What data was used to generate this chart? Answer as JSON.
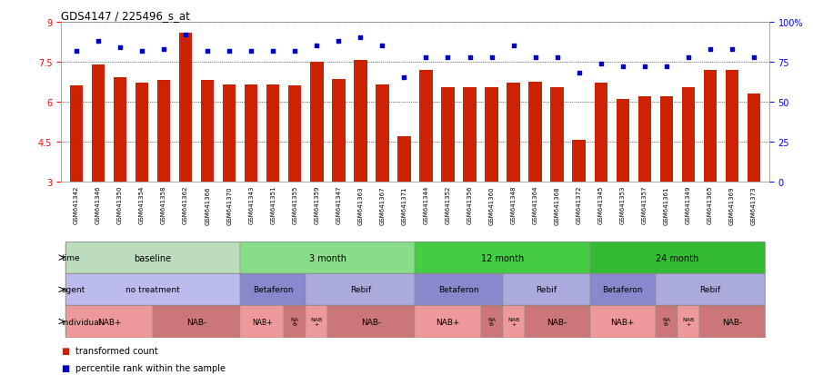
{
  "title": "GDS4147 / 225496_s_at",
  "samples": [
    "GSM641342",
    "GSM641346",
    "GSM641350",
    "GSM641354",
    "GSM641358",
    "GSM641362",
    "GSM641366",
    "GSM641370",
    "GSM641343",
    "GSM641351",
    "GSM641355",
    "GSM641359",
    "GSM641347",
    "GSM641363",
    "GSM641367",
    "GSM641371",
    "GSM641344",
    "GSM641352",
    "GSM641356",
    "GSM641360",
    "GSM641348",
    "GSM641364",
    "GSM641368",
    "GSM641372",
    "GSM641345",
    "GSM641353",
    "GSM641357",
    "GSM641361",
    "GSM641349",
    "GSM641365",
    "GSM641369",
    "GSM641373"
  ],
  "bar_values": [
    6.6,
    7.4,
    6.9,
    6.7,
    6.8,
    8.6,
    6.8,
    6.65,
    6.65,
    6.65,
    6.6,
    7.5,
    6.85,
    7.55,
    6.65,
    4.7,
    7.2,
    6.55,
    6.55,
    6.55,
    6.7,
    6.75,
    6.55,
    4.55,
    6.7,
    6.1,
    6.2,
    6.2,
    6.55,
    7.2,
    7.2,
    6.3
  ],
  "percentile_values": [
    82,
    88,
    84,
    82,
    83,
    92,
    82,
    82,
    82,
    82,
    82,
    85,
    88,
    90,
    85,
    65,
    78,
    78,
    78,
    78,
    85,
    78,
    78,
    68,
    74,
    72,
    72,
    72,
    78,
    83,
    83,
    78
  ],
  "ylim_left": [
    3,
    9
  ],
  "ylim_right": [
    0,
    100
  ],
  "yticks_left": [
    3,
    4.5,
    6,
    7.5,
    9
  ],
  "yticks_right": [
    0,
    25,
    50,
    75,
    100
  ],
  "ytick_labels_right": [
    "0",
    "25",
    "50",
    "75",
    "100%"
  ],
  "bar_color": "#cc2200",
  "dot_color": "#0000cc",
  "bg_color": "#ffffff",
  "chart_bg": "#ffffff",
  "time_colors": [
    "#bbddbb",
    "#88dd88",
    "#44cc44",
    "#33bb33"
  ],
  "time_groups": [
    {
      "text": "baseline",
      "start": 0,
      "end": 8
    },
    {
      "text": "3 month",
      "start": 8,
      "end": 16
    },
    {
      "text": "12 month",
      "start": 16,
      "end": 24
    },
    {
      "text": "24 month",
      "start": 24,
      "end": 32
    }
  ],
  "agent_colors": {
    "no treatment": "#bbbbee",
    "Betaferon": "#8888cc",
    "Rebif": "#aaaadd"
  },
  "agent_groups": [
    {
      "text": "no treatment",
      "start": 0,
      "end": 8
    },
    {
      "text": "Betaferon",
      "start": 8,
      "end": 11
    },
    {
      "text": "Rebif",
      "start": 11,
      "end": 16
    },
    {
      "text": "Betaferon",
      "start": 16,
      "end": 20
    },
    {
      "text": "Rebif",
      "start": 20,
      "end": 24
    },
    {
      "text": "Betaferon",
      "start": 24,
      "end": 27
    },
    {
      "text": "Rebif",
      "start": 27,
      "end": 32
    }
  ],
  "indiv_colors": {
    "NAB+": "#ee9999",
    "NAB-": "#cc7777"
  },
  "indiv_groups": [
    {
      "text": "NAB+",
      "start": 0,
      "end": 4
    },
    {
      "text": "NAB-",
      "start": 4,
      "end": 8
    },
    {
      "text": "NAB+",
      "start": 8,
      "end": 10
    },
    {
      "text": "NAB-",
      "start": 10,
      "end": 11
    },
    {
      "text": "NAB+",
      "start": 11,
      "end": 12
    },
    {
      "text": "NAB-",
      "start": 12,
      "end": 16
    },
    {
      "text": "NAB+",
      "start": 16,
      "end": 19
    },
    {
      "text": "NAB-",
      "start": 19,
      "end": 20
    },
    {
      "text": "NAB+",
      "start": 20,
      "end": 21
    },
    {
      "text": "NAB-",
      "start": 21,
      "end": 24
    },
    {
      "text": "NAB+",
      "start": 24,
      "end": 27
    },
    {
      "text": "NAB-",
      "start": 27,
      "end": 28
    },
    {
      "text": "NAB+",
      "start": 28,
      "end": 29
    },
    {
      "text": "NAB-",
      "start": 29,
      "end": 32
    }
  ],
  "legend_bar_label": "transformed count",
  "legend_dot_label": "percentile rank within the sample"
}
